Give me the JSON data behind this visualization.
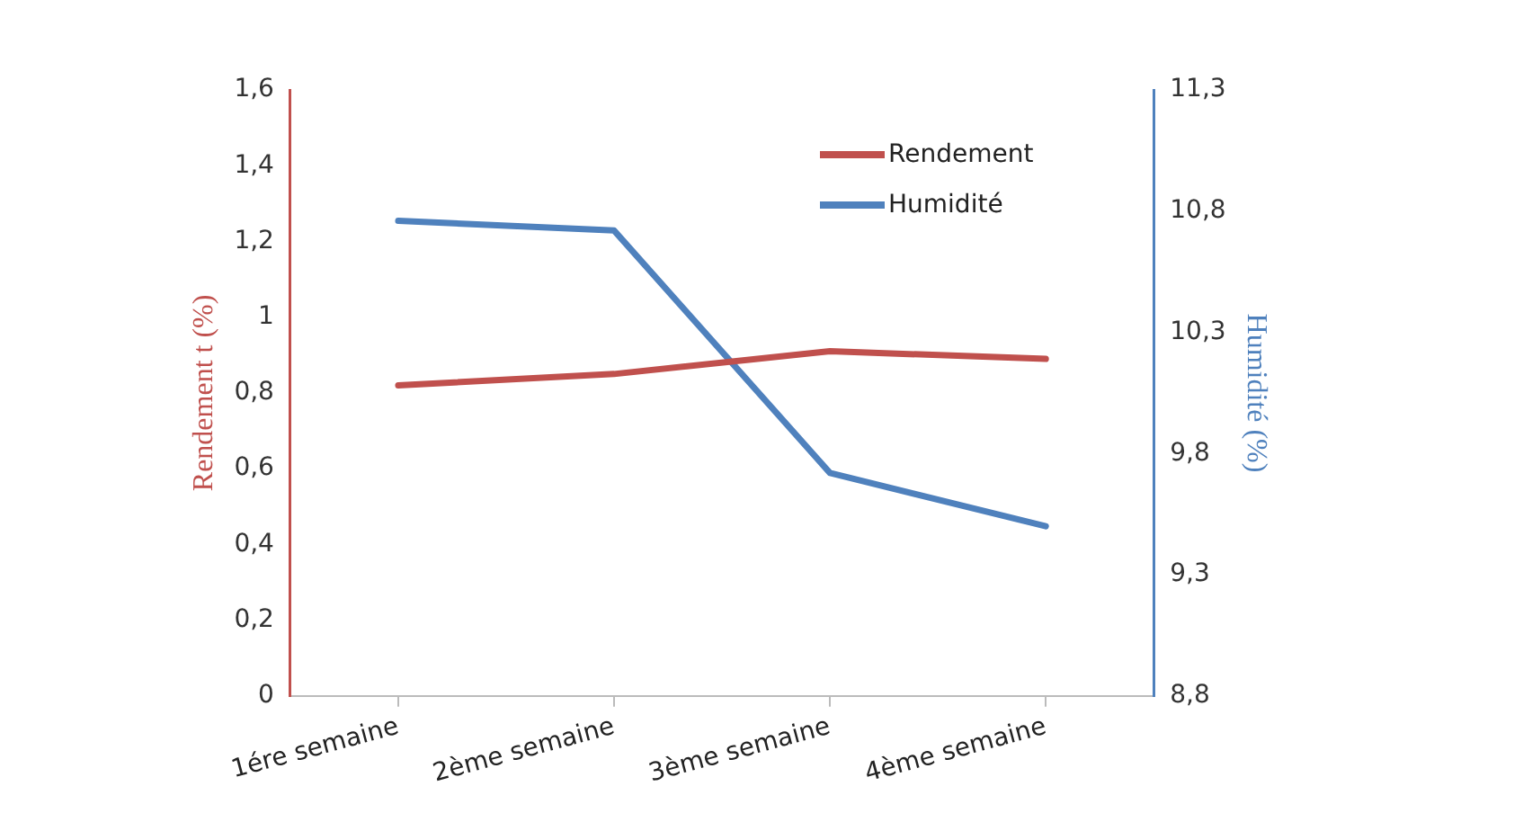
{
  "chart_data": {
    "type": "line",
    "categories": [
      "1ére semaine",
      "2ème semaine",
      "3ème semaine",
      "4ème semaine"
    ],
    "ylabel": "Rendement t (%)",
    "y2label": "Humidité (%)",
    "ylim": [
      0,
      1.6
    ],
    "yticks": [
      0,
      {
        "value": 0.2,
        "label": "0,2"
      },
      {
        "value": 0.4,
        "label": "0,4"
      },
      {
        "value": 0.6,
        "label": "0,6"
      },
      {
        "value": 0.8,
        "label": "0,8"
      },
      1,
      {
        "value": 1.2,
        "label": "1,2"
      },
      {
        "value": 1.4,
        "label": "1,4"
      },
      {
        "value": 1.6,
        "label": "1,6"
      }
    ],
    "y2lim": [
      8.8,
      11.3
    ],
    "y2ticks": [
      {
        "value": 8.8,
        "label": "8,8"
      },
      {
        "value": 9.3,
        "label": "9,3"
      },
      {
        "value": 9.8,
        "label": "9,8"
      },
      {
        "value": 10.3,
        "label": "10,3"
      },
      {
        "value": 10.8,
        "label": "10,8"
      },
      {
        "value": 11.3,
        "label": "11,3"
      }
    ],
    "series": [
      {
        "name": "Rendement",
        "color": "#c0504d",
        "values": [
          0.82,
          0.85,
          0.91,
          0.89
        ]
      },
      {
        "name": "Humidité",
        "color": "#4f81bd",
        "axis": "y2",
        "values": [
          10.76,
          10.72,
          9.72,
          9.5
        ]
      }
    ],
    "grid": false,
    "legend": "top right",
    "marker": "none"
  }
}
